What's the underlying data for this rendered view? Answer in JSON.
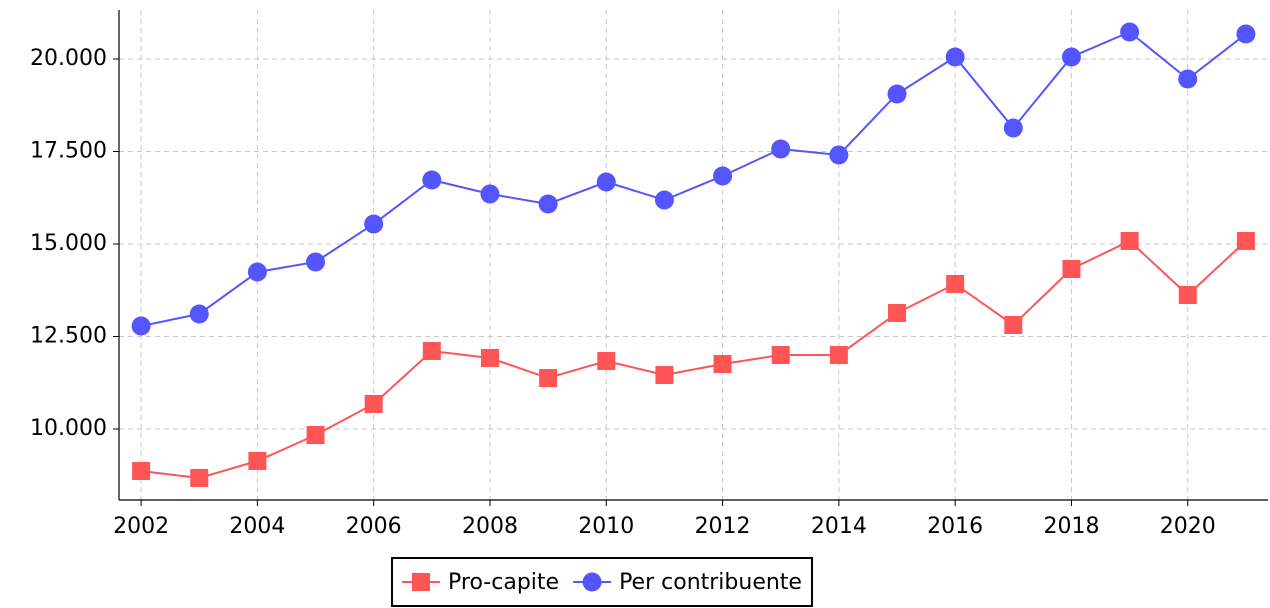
{
  "chart_data": {
    "type": "line",
    "x": [
      2002,
      2003,
      2004,
      2005,
      2006,
      2007,
      2008,
      2009,
      2010,
      2011,
      2012,
      2013,
      2014,
      2015,
      2016,
      2017,
      2018,
      2019,
      2020,
      2021
    ],
    "series": [
      {
        "name": "Pro-capite",
        "color": "#ff5555",
        "marker": "square",
        "values": [
          8865,
          8676,
          9135,
          9838,
          10676,
          12108,
          11919,
          11378,
          11838,
          11459,
          11757,
          12000,
          12000,
          13135,
          13919,
          12811,
          14324,
          15081,
          13622,
          15081
        ]
      },
      {
        "name": "Per contribuente",
        "color": "#5555ff",
        "marker": "circle",
        "values": [
          12784,
          13108,
          14243,
          14514,
          15541,
          16730,
          16351,
          16081,
          16676,
          16189,
          16838,
          17568,
          17405,
          19054,
          20054,
          18135,
          20054,
          20730,
          19459,
          20676
        ]
      }
    ],
    "xlim": [
      2001.62,
      2021.38
    ],
    "xticks": [
      2002,
      2004,
      2006,
      2008,
      2010,
      2012,
      2014,
      2016,
      2018,
      2020
    ],
    "ylim": [
      8081,
      21324
    ],
    "yticks": [
      {
        "value": 10000,
        "label": "10.000"
      },
      {
        "value": 12500,
        "label": "12.500"
      },
      {
        "value": 15000,
        "label": "15.000"
      },
      {
        "value": 17500,
        "label": "17.500"
      },
      {
        "value": 20000,
        "label": "20.000"
      }
    ],
    "grid": true,
    "legend": "bottom"
  }
}
